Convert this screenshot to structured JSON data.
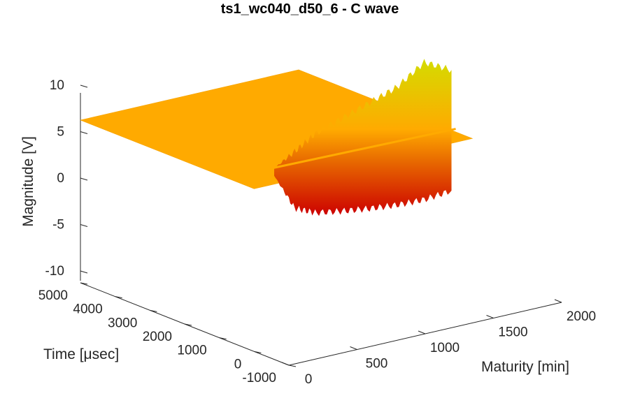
{
  "chart_data": {
    "type": "surface",
    "title": "ts1_wc040_d50_6 - C wave",
    "xlabel": "Maturity [min]",
    "ylabel": "Time [μsec]",
    "zlabel": "Magnitude [V]",
    "xlim": [
      0,
      2000
    ],
    "ylim": [
      -1000,
      5000
    ],
    "zlim": [
      -10,
      10
    ],
    "x_ticks": [
      "0",
      "500",
      "1000",
      "1500",
      "2000"
    ],
    "y_ticks": [
      "-1000",
      "0",
      "1000",
      "2000",
      "3000",
      "4000",
      "5000"
    ],
    "z_ticks": [
      "-10",
      "-5",
      "0",
      "5",
      "10"
    ],
    "x_tick_values": [
      0,
      500,
      1000,
      1500,
      2000
    ],
    "y_tick_values": [
      -1000,
      0,
      1000,
      2000,
      3000,
      4000,
      5000
    ],
    "z_tick_values": [
      -10,
      -5,
      0,
      5,
      10
    ],
    "surface_extent": {
      "maturity": [
        0,
        1600
      ],
      "time": [
        0,
        5000
      ]
    },
    "flat_plane_value": 0,
    "signal_window_time": [
      0,
      1000
    ],
    "signal_envelope": [
      {
        "maturity": 300,
        "max": 0.3,
        "min": -0.5
      },
      {
        "maturity": 450,
        "max": 1.6,
        "min": -4.5
      },
      {
        "maturity": 600,
        "max": 3.0,
        "min": -5.5
      },
      {
        "maturity": 800,
        "max": 4.0,
        "min": -6.0
      },
      {
        "maturity": 1000,
        "max": 5.0,
        "min": -6.4
      },
      {
        "maturity": 1200,
        "max": 6.0,
        "min": -6.7
      },
      {
        "maturity": 1400,
        "max": 8.0,
        "min": -6.8
      },
      {
        "maturity": 1600,
        "max": 6.5,
        "min": -6.5
      }
    ],
    "colormap": [
      "#cc0000",
      "#e86a00",
      "#ffaa00",
      "#d4dc00"
    ],
    "grid": false
  }
}
